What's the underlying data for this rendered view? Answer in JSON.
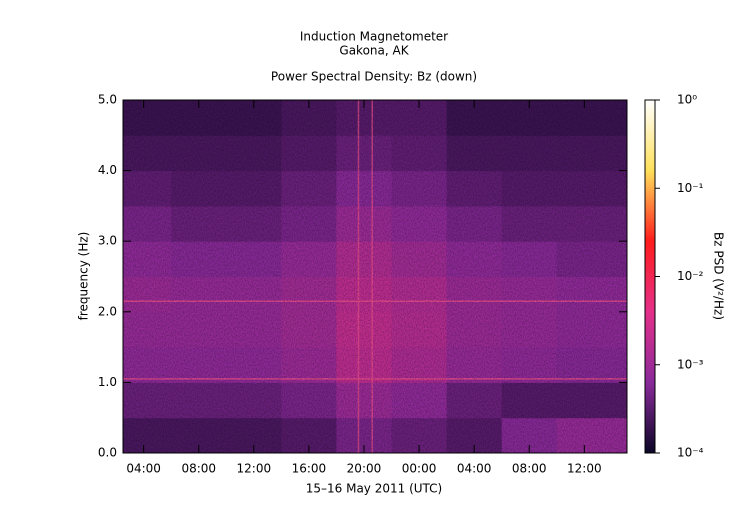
{
  "chart_data": {
    "type": "spectrogram",
    "title": "Induction Magnetometer",
    "subtitle": "Gakona, AK",
    "plot_title": "Power Spectral Density: Bz (down)",
    "x_label": "15–16 May 2011 (UTC)",
    "y_label": "frequency (Hz)",
    "colorbar_label": "Bz PSD (V²/Hz)",
    "xlim": [
      2.5,
      39.1
    ],
    "xticks": [
      {
        "value": 4,
        "label": "04:00"
      },
      {
        "value": 8,
        "label": "08:00"
      },
      {
        "value": 12,
        "label": "12:00"
      },
      {
        "value": 16,
        "label": "16:00"
      },
      {
        "value": 20,
        "label": "20:00"
      },
      {
        "value": 24,
        "label": "00:00"
      },
      {
        "value": 28,
        "label": "04:00"
      },
      {
        "value": 32,
        "label": "08:00"
      },
      {
        "value": 36,
        "label": "12:00"
      }
    ],
    "ylim": [
      0,
      5
    ],
    "yticks": [
      {
        "value": 0,
        "label": "0.0"
      },
      {
        "value": 1,
        "label": "1.0"
      },
      {
        "value": 2,
        "label": "2.0"
      },
      {
        "value": 3,
        "label": "3.0"
      },
      {
        "value": 4,
        "label": "4.0"
      },
      {
        "value": 5,
        "label": "5.0"
      }
    ],
    "clim": [
      0.0001,
      1
    ],
    "color_scale": "log",
    "cticks": [
      {
        "value": 0.0001,
        "label": "10⁻⁴"
      },
      {
        "value": 0.001,
        "label": "10⁻³"
      },
      {
        "value": 0.01,
        "label": "10⁻²"
      },
      {
        "value": 0.1,
        "label": "10⁻¹"
      },
      {
        "value": 1,
        "label": "10⁰"
      }
    ],
    "colormap": [
      "#0b0626",
      "#8a2a9a",
      "#e4308a",
      "#ff1c1c",
      "#ffe05a",
      "#ffffff"
    ],
    "time_edges": [
      2.5,
      6,
      10,
      14,
      18,
      22,
      26,
      30,
      34,
      39.1
    ],
    "freq_edges": [
      0,
      0.5,
      1,
      1.5,
      2,
      2.5,
      3,
      3.5,
      4,
      4.5,
      5
    ],
    "psd": [
      [
        0.00025,
        0.00025,
        0.00025,
        0.0003,
        0.0005,
        0.0004,
        0.0003,
        0.0006,
        0.0008
      ],
      [
        0.0004,
        0.0004,
        0.0004,
        0.0005,
        0.0009,
        0.0007,
        0.0004,
        0.0003,
        0.0003
      ],
      [
        0.0007,
        0.0007,
        0.0007,
        0.0009,
        0.0018,
        0.0013,
        0.0008,
        0.0007,
        0.0006
      ],
      [
        0.0008,
        0.0008,
        0.0008,
        0.001,
        0.002,
        0.0015,
        0.0009,
        0.0008,
        0.0007
      ],
      [
        0.0009,
        0.0008,
        0.0008,
        0.001,
        0.0018,
        0.0014,
        0.0009,
        0.0008,
        0.0007
      ],
      [
        0.0007,
        0.0006,
        0.0006,
        0.0008,
        0.0014,
        0.001,
        0.0007,
        0.0006,
        0.0005
      ],
      [
        0.0005,
        0.0004,
        0.0004,
        0.0005,
        0.0009,
        0.0007,
        0.0005,
        0.0004,
        0.0004
      ],
      [
        0.00035,
        0.0003,
        0.0003,
        0.0004,
        0.0006,
        0.0005,
        0.00035,
        0.0003,
        0.0003
      ],
      [
        0.00025,
        0.00025,
        0.00025,
        0.0003,
        0.0004,
        0.00035,
        0.00025,
        0.00025,
        0.00025
      ],
      [
        0.0002,
        0.0002,
        0.0002,
        0.00025,
        0.0003,
        0.0003,
        0.0002,
        0.0002,
        0.0002
      ]
    ],
    "lines_hz": [
      1.05,
      2.15
    ],
    "lines_time": [
      19.6,
      20.6
    ],
    "line_color": "#f0508c"
  }
}
